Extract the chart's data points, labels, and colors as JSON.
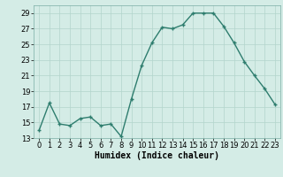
{
  "x": [
    0,
    1,
    2,
    3,
    4,
    5,
    6,
    7,
    8,
    9,
    10,
    11,
    12,
    13,
    14,
    15,
    16,
    17,
    18,
    19,
    20,
    21,
    22,
    23
  ],
  "y": [
    14,
    17.5,
    14.8,
    14.6,
    15.5,
    15.7,
    14.6,
    14.8,
    13.2,
    18,
    22.3,
    25.2,
    27.2,
    27.0,
    27.5,
    29.0,
    29.0,
    29.0,
    27.3,
    25.2,
    22.8,
    21.0,
    19.3,
    17.3
  ],
  "line_color": "#2e7d6e",
  "marker_color": "#2e7d6e",
  "bg_color": "#d4ece6",
  "grid_color": "#b2d4cc",
  "xlabel": "Humidex (Indice chaleur)",
  "xlim": [
    -0.5,
    23.5
  ],
  "ylim": [
    13,
    30
  ],
  "yticks": [
    13,
    15,
    17,
    19,
    21,
    23,
    25,
    27,
    29
  ],
  "xticks": [
    0,
    1,
    2,
    3,
    4,
    5,
    6,
    7,
    8,
    9,
    10,
    11,
    12,
    13,
    14,
    15,
    16,
    17,
    18,
    19,
    20,
    21,
    22,
    23
  ],
  "xlabel_fontsize": 7,
  "tick_fontsize": 6,
  "line_width": 1.0,
  "marker_size": 3.5
}
